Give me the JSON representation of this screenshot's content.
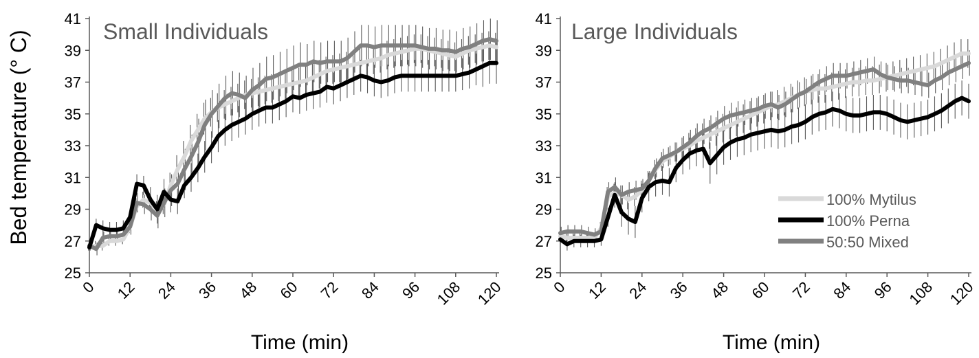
{
  "ylabel": "Bed temperature (°    C)",
  "colors": {
    "mytilus": "#d9d9d9",
    "perna": "#000000",
    "mixed": "#808080",
    "axis": "#595959",
    "errorbar": "#595959",
    "text": "#000000",
    "panel_title": "#595959",
    "legend_text": "#595959"
  },
  "legend": [
    {
      "name": "100% Mytilus",
      "color_key": "mytilus"
    },
    {
      "name": "100% Perna",
      "color_key": "perna"
    },
    {
      "name": "50:50 Mixed",
      "color_key": "mixed"
    }
  ],
  "chart_data": [
    {
      "type": "line",
      "title": "Small Individuals",
      "xlabel": "Time (min)",
      "xticks": [
        0,
        12,
        24,
        36,
        48,
        60,
        72,
        84,
        96,
        108,
        120
      ],
      "yticks": [
        25,
        27,
        29,
        31,
        33,
        35,
        37,
        39,
        41
      ],
      "xlim": [
        0,
        120
      ],
      "ylim": [
        25,
        41
      ],
      "legend_shown": false,
      "x": [
        0,
        2,
        4,
        6,
        8,
        10,
        12,
        14,
        16,
        18,
        20,
        22,
        24,
        26,
        28,
        30,
        32,
        34,
        36,
        38,
        40,
        42,
        44,
        46,
        48,
        50,
        52,
        54,
        56,
        58,
        60,
        62,
        64,
        66,
        68,
        70,
        72,
        74,
        76,
        78,
        80,
        82,
        84,
        86,
        88,
        90,
        92,
        94,
        96,
        98,
        100,
        102,
        104,
        106,
        108,
        110,
        112,
        114,
        116,
        118,
        120
      ],
      "series": [
        {
          "name": "100% Mytilus",
          "color_key": "mytilus",
          "values": [
            26.6,
            26.7,
            26.7,
            27.0,
            27.0,
            27.1,
            27.9,
            29.2,
            29.6,
            29.4,
            29.0,
            29.3,
            30.5,
            31.5,
            32.3,
            33.3,
            34.0,
            34.7,
            35.1,
            35.4,
            35.6,
            35.8,
            36.0,
            36.2,
            36.3,
            36.4,
            36.5,
            36.6,
            36.7,
            36.8,
            36.9,
            37.0,
            37.1,
            37.3,
            37.5,
            37.7,
            37.8,
            37.9,
            38.0,
            38.1,
            38.2,
            38.3,
            38.4,
            38.5,
            38.7,
            38.8,
            38.9,
            39.0,
            39.1,
            39.1,
            39.0,
            38.9,
            38.8,
            38.7,
            38.6,
            38.8,
            39.0,
            39.1,
            39.2,
            39.3,
            39.2
          ],
          "errors": [
            0.2,
            0.3,
            0.3,
            0.3,
            0.3,
            0.3,
            0.4,
            0.5,
            0.5,
            0.5,
            0.5,
            0.6,
            0.8,
            0.9,
            1.0,
            1.0,
            1.0,
            1.0,
            0.9,
            0.9,
            0.9,
            0.9,
            0.9,
            0.9,
            0.9,
            0.9,
            0.9,
            0.9,
            0.9,
            0.9,
            0.9,
            0.9,
            0.9,
            0.9,
            0.9,
            0.9,
            0.9,
            0.9,
            0.9,
            0.9,
            0.9,
            0.9,
            0.9,
            0.9,
            0.9,
            0.9,
            0.9,
            0.9,
            0.9,
            0.9,
            0.9,
            0.9,
            0.9,
            0.9,
            0.9,
            0.9,
            0.9,
            0.9,
            0.9,
            0.9,
            0.9
          ]
        },
        {
          "name": "100% Perna",
          "color_key": "perna",
          "values": [
            26.6,
            28.0,
            27.8,
            27.7,
            27.7,
            27.8,
            28.5,
            30.6,
            30.5,
            29.6,
            29.0,
            30.1,
            29.6,
            29.5,
            30.5,
            31.0,
            31.6,
            32.3,
            32.9,
            33.6,
            34.0,
            34.3,
            34.5,
            34.7,
            35.0,
            35.2,
            35.4,
            35.4,
            35.6,
            35.8,
            36.1,
            36.0,
            36.2,
            36.3,
            36.4,
            36.7,
            36.6,
            36.8,
            37.0,
            37.2,
            37.4,
            37.3,
            37.1,
            37.0,
            37.1,
            37.3,
            37.4,
            37.4,
            37.4,
            37.4,
            37.4,
            37.4,
            37.4,
            37.4,
            37.4,
            37.5,
            37.6,
            37.8,
            38.0,
            38.2,
            38.2
          ],
          "errors": [
            0.2,
            0.4,
            0.5,
            0.5,
            0.5,
            0.5,
            0.5,
            0.6,
            0.6,
            0.8,
            0.9,
            0.8,
            0.8,
            0.8,
            0.8,
            0.9,
            0.9,
            1.0,
            1.0,
            1.0,
            1.0,
            1.0,
            1.0,
            1.0,
            1.0,
            1.0,
            1.0,
            1.0,
            1.0,
            1.0,
            1.0,
            1.0,
            1.0,
            1.0,
            1.0,
            1.0,
            1.0,
            1.0,
            1.0,
            1.0,
            1.0,
            1.0,
            1.0,
            1.0,
            1.0,
            1.0,
            1.0,
            1.0,
            1.0,
            1.0,
            1.0,
            1.0,
            1.0,
            1.0,
            1.0,
            1.0,
            1.0,
            1.0,
            1.3,
            1.3,
            1.3
          ]
        },
        {
          "name": "50:50 Mixed",
          "color_key": "mixed",
          "values": [
            26.7,
            26.5,
            27.2,
            27.3,
            27.3,
            27.4,
            27.9,
            29.4,
            29.3,
            29.0,
            28.6,
            29.4,
            30.2,
            30.6,
            31.5,
            32.3,
            33.2,
            34.3,
            35.0,
            35.5,
            36.0,
            36.3,
            36.2,
            36.0,
            36.5,
            36.8,
            37.2,
            37.3,
            37.5,
            37.7,
            37.9,
            38.1,
            38.1,
            38.3,
            38.2,
            38.3,
            38.3,
            38.3,
            38.5,
            38.9,
            39.3,
            39.3,
            39.2,
            39.3,
            39.3,
            39.3,
            39.3,
            39.3,
            39.3,
            39.2,
            39.1,
            39.1,
            39.0,
            39.0,
            38.9,
            39.1,
            39.2,
            39.4,
            39.6,
            39.7,
            39.6
          ],
          "errors": [
            0.3,
            0.4,
            0.4,
            0.4,
            0.4,
            0.4,
            0.5,
            0.6,
            0.6,
            0.7,
            0.8,
            0.9,
            1.0,
            1.2,
            1.3,
            1.4,
            1.5,
            1.6,
            1.5,
            1.4,
            1.4,
            1.4,
            1.4,
            1.4,
            1.4,
            1.4,
            1.4,
            1.4,
            1.4,
            1.4,
            1.4,
            1.4,
            1.3,
            1.3,
            1.3,
            1.3,
            1.3,
            1.3,
            1.3,
            1.3,
            1.3,
            1.3,
            1.3,
            1.3,
            1.3,
            1.3,
            1.3,
            1.3,
            1.3,
            1.3,
            1.3,
            1.3,
            1.3,
            1.3,
            1.3,
            1.3,
            1.3,
            1.3,
            1.3,
            1.3,
            1.3
          ]
        }
      ]
    },
    {
      "type": "line",
      "title": "Large Individuals",
      "xlabel": "Time (min)",
      "xticks": [
        0,
        12,
        24,
        36,
        48,
        60,
        72,
        84,
        96,
        108,
        120
      ],
      "yticks": [
        25,
        27,
        29,
        31,
        33,
        35,
        37,
        39,
        41
      ],
      "xlim": [
        0,
        120
      ],
      "ylim": [
        25,
        41
      ],
      "legend_shown": true,
      "legend_position": "right",
      "x": [
        0,
        2,
        4,
        6,
        8,
        10,
        12,
        14,
        16,
        18,
        20,
        22,
        24,
        26,
        28,
        30,
        32,
        34,
        36,
        38,
        40,
        42,
        44,
        46,
        48,
        50,
        52,
        54,
        56,
        58,
        60,
        62,
        64,
        66,
        68,
        70,
        72,
        74,
        76,
        78,
        80,
        82,
        84,
        86,
        88,
        90,
        92,
        94,
        96,
        98,
        100,
        102,
        104,
        106,
        108,
        110,
        112,
        114,
        116,
        118,
        120
      ],
      "series": [
        {
          "name": "100% Mytilus",
          "color_key": "mytilus",
          "values": [
            27.3,
            27.2,
            27.2,
            27.2,
            27.2,
            27.2,
            27.8,
            29.8,
            30.0,
            29.9,
            29.6,
            29.8,
            30.2,
            30.8,
            31.5,
            32.0,
            32.3,
            32.6,
            32.8,
            33.0,
            33.3,
            33.5,
            33.7,
            33.9,
            34.1,
            34.3,
            34.5,
            34.7,
            34.9,
            35.1,
            35.3,
            35.5,
            35.6,
            35.8,
            36.0,
            36.2,
            36.4,
            36.5,
            36.6,
            36.6,
            36.7,
            36.8,
            36.9,
            37.0,
            37.0,
            37.1,
            37.1,
            37.2,
            37.3,
            37.4,
            37.5,
            37.6,
            37.7,
            37.8,
            37.9,
            38.0,
            38.2,
            38.4,
            38.6,
            38.8,
            38.8
          ],
          "errors": [
            0.3,
            0.3,
            0.3,
            0.3,
            0.3,
            0.3,
            0.4,
            0.6,
            0.6,
            0.6,
            0.6,
            0.6,
            0.6,
            0.6,
            0.6,
            0.6,
            0.6,
            0.6,
            0.7,
            0.8,
            0.8,
            0.9,
            0.9,
            0.9,
            0.9,
            0.9,
            0.9,
            0.9,
            0.9,
            0.9,
            0.9,
            0.9,
            0.9,
            0.9,
            0.9,
            0.9,
            0.9,
            0.9,
            0.9,
            0.9,
            0.9,
            0.9,
            0.9,
            0.9,
            0.9,
            0.9,
            0.9,
            0.9,
            0.9,
            0.9,
            0.9,
            0.9,
            0.9,
            0.9,
            0.9,
            0.9,
            0.9,
            0.9,
            0.9,
            0.9,
            0.9
          ]
        },
        {
          "name": "100% Perna",
          "color_key": "perna",
          "values": [
            27.1,
            26.8,
            27.0,
            27.0,
            27.0,
            27.0,
            27.1,
            28.5,
            29.9,
            28.8,
            28.4,
            28.2,
            29.7,
            30.4,
            30.7,
            30.8,
            30.7,
            31.6,
            32.1,
            32.5,
            32.7,
            32.8,
            31.9,
            32.4,
            32.9,
            33.2,
            33.4,
            33.5,
            33.7,
            33.8,
            33.9,
            34.0,
            33.9,
            34.0,
            34.2,
            34.3,
            34.5,
            34.8,
            35.0,
            35.1,
            35.3,
            35.2,
            35.0,
            34.9,
            34.9,
            35.0,
            35.1,
            35.1,
            35.0,
            34.8,
            34.6,
            34.5,
            34.6,
            34.7,
            34.8,
            35.0,
            35.2,
            35.5,
            35.8,
            36.0,
            35.8
          ],
          "errors": [
            0.3,
            0.4,
            0.4,
            0.4,
            0.4,
            0.4,
            0.4,
            0.6,
            0.8,
            0.9,
            1.0,
            1.0,
            0.9,
            0.9,
            0.9,
            0.9,
            0.9,
            0.9,
            0.9,
            1.0,
            1.0,
            1.2,
            1.3,
            1.2,
            1.1,
            1.1,
            1.1,
            1.1,
            1.1,
            1.1,
            1.1,
            1.1,
            1.1,
            1.1,
            1.1,
            1.1,
            1.1,
            1.1,
            1.1,
            1.1,
            1.1,
            1.1,
            1.1,
            1.1,
            1.1,
            1.1,
            1.1,
            1.1,
            1.1,
            1.1,
            1.1,
            1.1,
            1.1,
            1.1,
            1.1,
            1.1,
            1.1,
            1.1,
            1.1,
            1.1,
            1.1
          ]
        },
        {
          "name": "50:50 Mixed",
          "color_key": "mixed",
          "values": [
            27.5,
            27.6,
            27.6,
            27.6,
            27.5,
            27.4,
            27.6,
            30.1,
            30.4,
            29.9,
            30.1,
            30.2,
            30.3,
            30.8,
            31.6,
            32.2,
            32.4,
            32.6,
            32.9,
            33.2,
            33.6,
            33.9,
            34.1,
            34.4,
            34.7,
            34.9,
            35.0,
            35.1,
            35.2,
            35.3,
            35.5,
            35.6,
            35.4,
            35.6,
            35.9,
            36.2,
            36.4,
            36.7,
            37.0,
            37.2,
            37.4,
            37.4,
            37.4,
            37.5,
            37.6,
            37.7,
            37.8,
            37.5,
            37.3,
            37.2,
            37.1,
            37.1,
            37.0,
            36.9,
            36.8,
            37.1,
            37.3,
            37.6,
            37.8,
            38.0,
            38.2
          ],
          "errors": [
            0.4,
            0.4,
            0.4,
            0.4,
            0.4,
            0.4,
            0.4,
            0.6,
            0.6,
            0.6,
            0.6,
            0.6,
            0.6,
            0.6,
            0.6,
            0.6,
            0.6,
            0.6,
            0.7,
            0.8,
            0.8,
            0.8,
            0.8,
            0.8,
            0.8,
            0.8,
            0.8,
            0.8,
            0.8,
            0.8,
            0.8,
            0.8,
            0.8,
            0.8,
            0.8,
            0.8,
            0.8,
            0.8,
            0.8,
            0.8,
            0.8,
            0.8,
            0.8,
            0.8,
            0.8,
            0.8,
            0.8,
            0.8,
            0.8,
            0.8,
            0.8,
            0.8,
            0.8,
            0.8,
            0.8,
            0.8,
            0.8,
            0.8,
            0.8,
            0.8,
            0.8
          ]
        }
      ]
    }
  ]
}
